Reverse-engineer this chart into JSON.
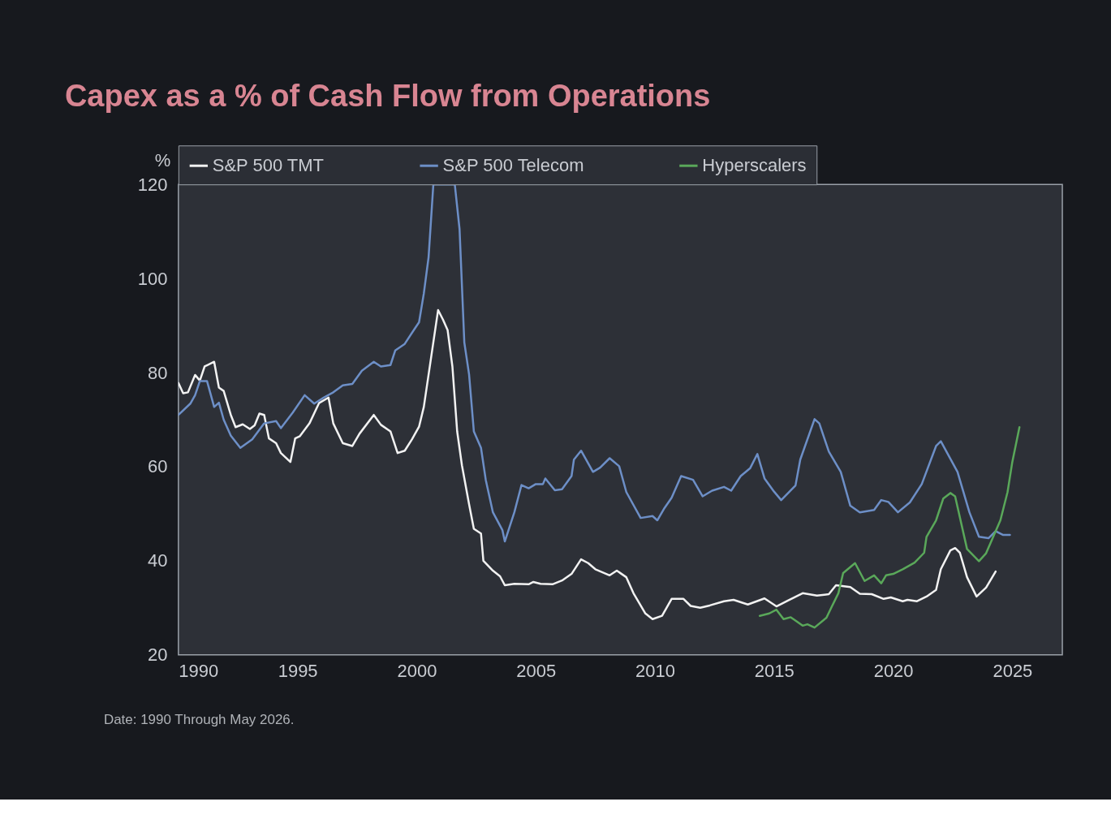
{
  "chart_data": {
    "type": "line",
    "title": "Capex as a % of Cash Flow from Operations",
    "ylabel": "%",
    "xlim": [
      1990,
      2027.1
    ],
    "xticks": [
      1990,
      1995,
      2000,
      2005,
      2010,
      2015,
      2020,
      2025
    ],
    "ylim": [
      20,
      120
    ],
    "yticks": [
      20,
      40,
      60,
      80,
      100,
      120
    ],
    "grid": false,
    "legend": "top",
    "line_style": "solid",
    "marker": "none",
    "annotations": [
      "Date: 1990 Through May 2026."
    ],
    "series": [
      {
        "name": "S&P 500 TMT",
        "color": "#f2f2f2",
        "x": [
          1990.0,
          1990.2,
          1990.4,
          1990.7,
          1990.9,
          1991.1,
          1991.5,
          1991.7,
          1991.9,
          1992.2,
          1992.4,
          1992.7,
          1993.0,
          1993.2,
          1993.4,
          1993.6,
          1993.8,
          1994.1,
          1994.3,
          1994.7,
          1994.9,
          1995.1,
          1995.5,
          1995.9,
          1996.3,
          1996.5,
          1996.9,
          1997.3,
          1997.6,
          1998.2,
          1998.5,
          1998.9,
          1999.2,
          1999.5,
          1999.8,
          2000.1,
          2000.3,
          2000.6,
          2000.9,
          2001.1,
          2001.3,
          2001.5,
          2001.7,
          2001.9,
          2002.2,
          2002.4,
          2002.7,
          2002.8,
          2003.2,
          2003.5,
          2003.7,
          2004.1,
          2004.7,
          2004.9,
          2005.2,
          2005.7,
          2006.1,
          2006.5,
          2006.9,
          2007.2,
          2007.5,
          2008.1,
          2008.4,
          2008.8,
          2009.1,
          2009.6,
          2009.9,
          2010.3,
          2010.7,
          2011.2,
          2011.5,
          2011.9,
          2012.3,
          2012.9,
          2013.3,
          2013.9,
          2014.6,
          2015.1,
          2015.6,
          2016.2,
          2016.8,
          2017.3,
          2017.6,
          2018.2,
          2018.6,
          2019.1,
          2019.6,
          2019.9,
          2020.4,
          2020.6,
          2021.0,
          2021.4,
          2021.8,
          2022.0,
          2022.4,
          2022.6,
          2022.8,
          2023.1,
          2023.5,
          2023.9,
          2024.3
        ],
        "values": [
          77.8,
          75.6,
          75.8,
          79.5,
          78.3,
          81.3,
          82.3,
          76.8,
          76.1,
          71.0,
          68.4,
          69.0,
          68.0,
          68.8,
          71.3,
          71.0,
          66.0,
          65.0,
          62.9,
          61.0,
          66.0,
          66.5,
          69.2,
          73.5,
          74.7,
          69.2,
          65.0,
          64.4,
          67.0,
          71.0,
          68.9,
          67.5,
          62.9,
          63.4,
          65.8,
          68.5,
          72.7,
          83.0,
          93.3,
          91.3,
          89.0,
          81.3,
          67.5,
          60.3,
          52.0,
          46.8,
          45.8,
          40.0,
          37.9,
          36.7,
          34.8,
          35.1,
          35.0,
          35.5,
          35.1,
          35.0,
          35.8,
          37.2,
          40.3,
          39.5,
          38.2,
          36.9,
          37.9,
          36.5,
          33.1,
          28.8,
          27.6,
          28.3,
          31.9,
          31.9,
          30.4,
          30.0,
          30.5,
          31.4,
          31.7,
          30.7,
          32.0,
          30.3,
          31.6,
          33.1,
          32.6,
          32.9,
          34.8,
          34.4,
          33.0,
          32.9,
          31.9,
          32.2,
          31.4,
          31.7,
          31.4,
          32.4,
          33.8,
          38.2,
          42.2,
          42.7,
          41.7,
          36.5,
          32.4,
          34.3,
          37.7
        ]
      },
      {
        "name": "S&P 500 Telecom",
        "color": "#6d8fc7",
        "x": [
          1990.0,
          1990.5,
          1990.7,
          1990.9,
          1991.2,
          1991.5,
          1991.7,
          1991.9,
          1992.2,
          1992.6,
          1993.1,
          1993.6,
          1994.1,
          1994.3,
          1994.8,
          1995.3,
          1995.7,
          1996.1,
          1996.5,
          1996.9,
          1997.3,
          1997.7,
          1998.2,
          1998.5,
          1998.9,
          1999.1,
          1999.5,
          1999.9,
          2000.1,
          2000.3,
          2000.5,
          2000.7,
          2001.6,
          2001.8,
          2002.0,
          2002.2,
          2002.4,
          2002.7,
          2002.9,
          2003.2,
          2003.6,
          2003.7,
          2004.1,
          2004.4,
          2004.7,
          2005.0,
          2005.3,
          2005.4,
          2005.8,
          2006.1,
          2006.5,
          2006.6,
          2006.9,
          2007.4,
          2007.7,
          2008.1,
          2008.5,
          2008.8,
          2009.4,
          2009.9,
          2010.1,
          2010.4,
          2010.7,
          2011.1,
          2011.6,
          2012.0,
          2012.4,
          2012.9,
          2013.2,
          2013.6,
          2014.0,
          2014.3,
          2014.6,
          2015.0,
          2015.3,
          2015.9,
          2016.1,
          2016.7,
          2016.9,
          2017.3,
          2017.8,
          2018.2,
          2018.6,
          2019.2,
          2019.5,
          2019.8,
          2020.2,
          2020.7,
          2021.2,
          2021.8,
          2022.0,
          2022.7,
          2023.2,
          2023.6,
          2024.0,
          2024.3,
          2024.6,
          2024.9
        ],
        "values": [
          71.0,
          73.4,
          75.2,
          78.2,
          78.2,
          72.7,
          73.6,
          70.0,
          66.6,
          64.0,
          65.8,
          69.2,
          69.7,
          68.2,
          71.5,
          75.2,
          73.4,
          74.7,
          75.8,
          77.3,
          77.6,
          80.4,
          82.3,
          81.3,
          81.6,
          84.7,
          86.1,
          89.2,
          90.7,
          96.8,
          104.5,
          120,
          120,
          110.5,
          86.4,
          79.6,
          67.5,
          64.0,
          57.2,
          50.3,
          46.5,
          44.1,
          50.3,
          56.1,
          55.4,
          56.3,
          56.3,
          57.5,
          55.0,
          55.2,
          58.0,
          61.5,
          63.4,
          58.9,
          59.8,
          61.8,
          60.1,
          54.6,
          49.1,
          49.5,
          48.6,
          51.2,
          53.4,
          58.0,
          57.2,
          53.7,
          54.9,
          55.7,
          54.9,
          58.0,
          59.7,
          62.7,
          57.5,
          54.7,
          52.9,
          56.0,
          61.5,
          70.1,
          69.2,
          63.2,
          58.9,
          51.7,
          50.3,
          50.8,
          52.9,
          52.5,
          50.3,
          52.4,
          56.3,
          64.4,
          65.4,
          58.9,
          50.3,
          45.1,
          44.8,
          46.3,
          45.5,
          45.5
        ]
      },
      {
        "name": "Hyperscalers",
        "color": "#5aa85a",
        "x": [
          2014.4,
          2014.8,
          2015.1,
          2015.4,
          2015.7,
          2016.2,
          2016.4,
          2016.7,
          2017.2,
          2017.4,
          2017.7,
          2017.9,
          2018.4,
          2018.8,
          2019.2,
          2019.5,
          2019.7,
          2020.0,
          2020.4,
          2020.9,
          2021.3,
          2021.4,
          2021.8,
          2022.1,
          2022.4,
          2022.6,
          2023.1,
          2023.6,
          2023.9,
          2024.5,
          2024.8,
          2025.0,
          2025.3
        ],
        "values": [
          28.3,
          28.8,
          29.6,
          27.6,
          28.0,
          26.2,
          26.5,
          25.8,
          27.9,
          30.0,
          33.1,
          37.4,
          39.5,
          35.7,
          36.9,
          35.2,
          36.9,
          37.2,
          38.2,
          39.6,
          41.7,
          45.1,
          48.6,
          53.2,
          54.4,
          53.7,
          42.5,
          39.9,
          41.6,
          48.6,
          54.6,
          61.0,
          68.4
        ]
      }
    ]
  }
}
